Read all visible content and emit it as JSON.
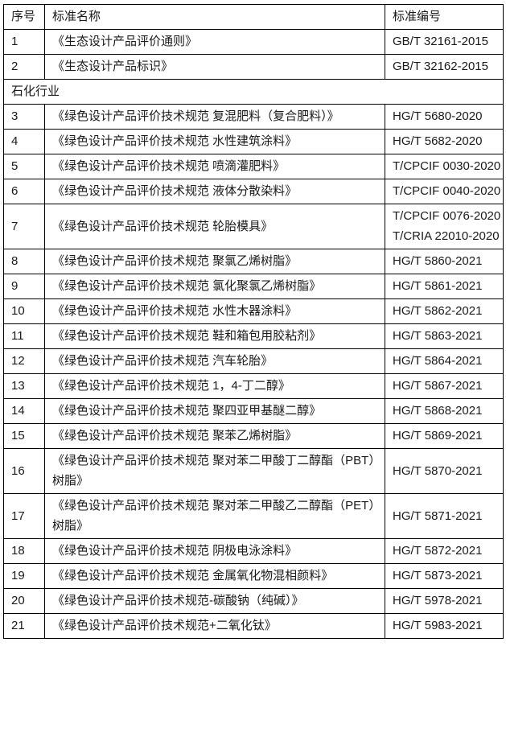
{
  "table": {
    "headers": [
      "序号",
      "标准名称",
      "标准编号"
    ],
    "rows": [
      {
        "no": "1",
        "name": "《生态设计产品评价通则》",
        "code": "GB/T 32161-2015"
      },
      {
        "no": "2",
        "name": "《生态设计产品标识》",
        "code": "GB/T 32162-2015"
      },
      {
        "section": "石化行业"
      },
      {
        "no": "3",
        "name": "《绿色设计产品评价技术规范 复混肥料（复合肥料）》",
        "code": "HG/T 5680-2020"
      },
      {
        "no": "4",
        "name": "《绿色设计产品评价技术规范 水性建筑涂料》",
        "code": "HG/T 5682-2020"
      },
      {
        "no": "5",
        "name": "《绿色设计产品评价技术规范 喷滴灌肥料》",
        "code": "T/CPCIF 0030-2020"
      },
      {
        "no": "6",
        "name": "《绿色设计产品评价技术规范 液体分散染料》",
        "code": "T/CPCIF 0040-2020"
      },
      {
        "no": "7",
        "name": "《绿色设计产品评价技术规范 轮胎模具》",
        "code": "T/CPCIF 0076-2020T/CRIA 22010-2020"
      },
      {
        "no": "8",
        "name": "《绿色设计产品评价技术规范 聚氯乙烯树脂》",
        "code": "HG/T 5860-2021"
      },
      {
        "no": "9",
        "name": "《绿色设计产品评价技术规范 氯化聚氯乙烯树脂》",
        "code": "HG/T 5861-2021"
      },
      {
        "no": "10",
        "name": "《绿色设计产品评价技术规范 水性木器涂料》",
        "code": "HG/T 5862-2021"
      },
      {
        "no": "11",
        "name": "《绿色设计产品评价技术规范 鞋和箱包用胶粘剂》",
        "code": "HG/T 5863-2021"
      },
      {
        "no": "12",
        "name": "《绿色设计产品评价技术规范 汽车轮胎》",
        "code": "HG/T 5864-2021"
      },
      {
        "no": "13",
        "name": "《绿色设计产品评价技术规范 1，4-丁二醇》",
        "code": "HG/T 5867-2021"
      },
      {
        "no": "14",
        "name": "《绿色设计产品评价技术规范 聚四亚甲基醚二醇》",
        "code": "HG/T 5868-2021"
      },
      {
        "no": "15",
        "name": "《绿色设计产品评价技术规范 聚苯乙烯树脂》",
        "code": "HG/T 5869-2021"
      },
      {
        "no": "16",
        "name": "《绿色设计产品评价技术规范 聚对苯二甲酸丁二醇酯（PBT）树脂》",
        "code": "HG/T 5870-2021"
      },
      {
        "no": "17",
        "name": "《绿色设计产品评价技术规范 聚对苯二甲酸乙二醇酯（PET）树脂》",
        "code": "HG/T 5871-2021"
      },
      {
        "no": "18",
        "name": "《绿色设计产品评价技术规范 阴极电泳涂料》",
        "code": "HG/T 5872-2021"
      },
      {
        "no": "19",
        "name": "《绿色设计产品评价技术规范 金属氧化物混相颜料》",
        "code": "HG/T 5873-2021"
      },
      {
        "no": "20",
        "name": "《绿色设计产品评价技术规范-碳酸钠（纯碱）》",
        "code": "HG/T 5978-2021"
      },
      {
        "no": "21",
        "name": "《绿色设计产品评价技术规范+二氧化钛》",
        "code": "HG/T 5983-2021"
      }
    ]
  }
}
